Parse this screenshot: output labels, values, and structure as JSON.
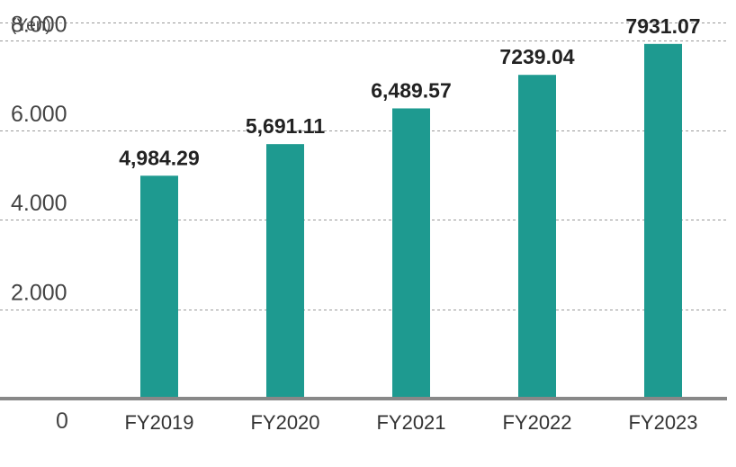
{
  "chart_data": {
    "type": "bar",
    "title": "",
    "xlabel": "",
    "ylabel": "",
    "unit": "(Yen)",
    "categories": [
      "FY2019",
      "FY2020",
      "FY2021",
      "FY2022",
      "FY2023"
    ],
    "values": [
      4984.29,
      5691.11,
      6489.57,
      7239.04,
      7931.07
    ],
    "value_labels": [
      "4,984.29",
      "5,691.11",
      "6,489.57",
      "7239.04",
      "7931.07"
    ],
    "y_ticks": [
      0,
      2000,
      4000,
      6000,
      8000
    ],
    "y_tick_labels": [
      "0",
      "2.000",
      "4.000",
      "6.000",
      "8.000"
    ],
    "ylim": [
      0,
      8000
    ],
    "grid": true,
    "legend": "none",
    "bar_color": "#1e9a90"
  }
}
